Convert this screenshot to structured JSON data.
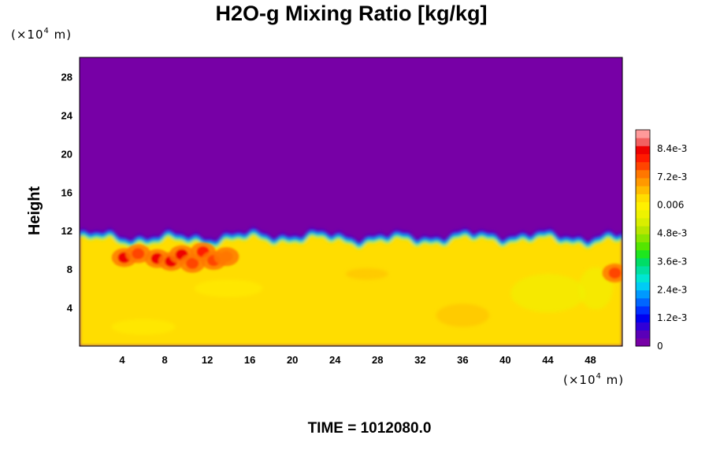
{
  "chart_data": {
    "type": "heatmap",
    "title": "H2O-g Mixing Ratio [kg/kg]",
    "ylabel": "Height",
    "x_unit": {
      "prefix": "(×10",
      "exponent": "4",
      "suffix": " m)"
    },
    "y_unit": {
      "prefix": "(×10",
      "exponent": "4",
      "suffix": " m)"
    },
    "xlim": [
      0,
      51
    ],
    "ylim": [
      0,
      30
    ],
    "x_ticks": [
      4,
      8,
      12,
      16,
      20,
      24,
      28,
      32,
      36,
      40,
      44,
      48
    ],
    "y_ticks": [
      4,
      8,
      12,
      16,
      20,
      24,
      28
    ],
    "time_label": "TIME = 1012080.0",
    "field": {
      "upper_value": 0.0,
      "lower_value": 0.0064,
      "moist_layer_top_height": 10.8,
      "interface_band_values": [
        0.0004,
        0.0012,
        0.0022,
        0.0032,
        0.0042,
        0.0052
      ],
      "moist_cores": [
        {
          "x": 4.2,
          "y": 9.2,
          "value": 0.0083
        },
        {
          "x": 5.5,
          "y": 9.6,
          "value": 0.0076
        },
        {
          "x": 7.3,
          "y": 9.1,
          "value": 0.0082
        },
        {
          "x": 8.6,
          "y": 8.8,
          "value": 0.0085
        },
        {
          "x": 9.6,
          "y": 9.5,
          "value": 0.0084
        },
        {
          "x": 10.6,
          "y": 8.6,
          "value": 0.0078
        },
        {
          "x": 11.6,
          "y": 9.8,
          "value": 0.0081
        },
        {
          "x": 12.6,
          "y": 8.9,
          "value": 0.0077
        },
        {
          "x": 13.8,
          "y": 9.3,
          "value": 0.0072
        },
        {
          "x": 50.3,
          "y": 7.6,
          "value": 0.0075
        }
      ]
    },
    "colorbar": {
      "range": [
        0,
        0.0092
      ],
      "tick_values": [
        0,
        0.0012,
        0.0024,
        0.0036,
        0.0048,
        0.006,
        0.0072,
        0.0084
      ],
      "tick_labels": [
        "0",
        "1.2e-3",
        "2.4e-3",
        "3.6e-3",
        "4.8e-3",
        "0.006",
        "7.2e-3",
        "8.4e-3"
      ],
      "colors": [
        "#7700a6",
        "#5a00b8",
        "#3000d8",
        "#0000f0",
        "#0030ff",
        "#0066ff",
        "#0099ff",
        "#00ccf5",
        "#00e6d2",
        "#00e0a0",
        "#00dd66",
        "#1ee61e",
        "#55e600",
        "#8ae600",
        "#b8e600",
        "#d9ee00",
        "#eef200",
        "#fff000",
        "#ffdd00",
        "#ffbb00",
        "#ff9900",
        "#ff7700",
        "#ff4400",
        "#ff1a00",
        "#ee0000",
        "#f26060",
        "#ff9a9a"
      ]
    }
  }
}
